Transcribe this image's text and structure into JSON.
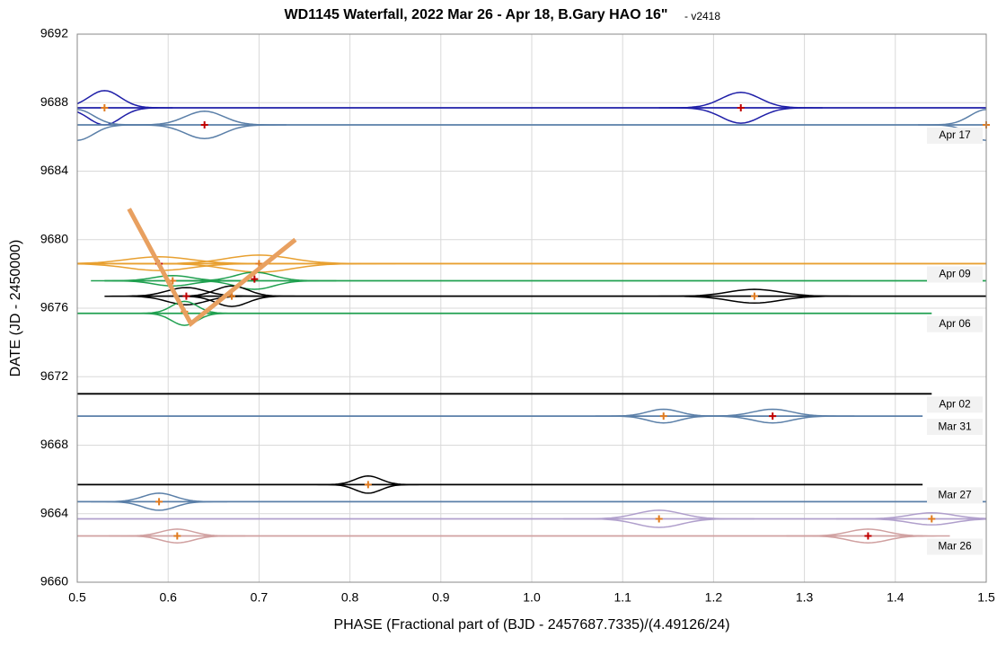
{
  "chart_data": {
    "type": "waterfall-phase",
    "title": "WD1145 Waterfall, 2022 Mar 26 - Apr 18, B.Gary HAO 16\"",
    "subtitle": "- v2418",
    "x_label": "PHASE (Fractional part of (BJD - 2457687.7335)/(4.49126/24)",
    "y_label": "DATE (JD - 2450000)",
    "xlim": [
      0.5,
      1.5
    ],
    "xticks": [
      0.5,
      0.6,
      0.7,
      0.8,
      0.9,
      {
        "value": 1,
        "label": "1.0"
      },
      1.1,
      1.2,
      1.3,
      1.4,
      1.5
    ],
    "ylim": [
      9660,
      9692
    ],
    "yticks": [
      9660,
      9664,
      9668,
      9672,
      9676,
      9680,
      9684,
      9688,
      9692
    ],
    "grid": true,
    "series": [
      {
        "color": "#1f1fa8",
        "y": 9687.7,
        "xrange": [
          0.5,
          1.5
        ],
        "dips": [
          {
            "phase": 0.53,
            "width": 0.025,
            "depth": 1.0
          },
          {
            "phase": 1.23,
            "width": 0.03,
            "depth": 0.9
          }
        ]
      },
      {
        "name": "Apr 17",
        "color": "#5a7fa8",
        "y": 9686.7,
        "xrange": [
          0.5,
          1.5
        ],
        "dips": [
          {
            "phase": 0.5,
            "width": 0.025,
            "depth": 0.9
          },
          {
            "phase": 0.64,
            "width": 0.03,
            "depth": 0.8
          },
          {
            "phase": 1.5,
            "width": 0.025,
            "depth": 0.9
          }
        ]
      },
      {
        "name": "Apr 09",
        "color": "#e8a030",
        "y": 9678.6,
        "xrange": [
          0.5,
          1.5
        ],
        "dips": [
          {
            "phase": 0.59,
            "width": 0.05,
            "depth": 0.4
          },
          {
            "phase": 0.7,
            "width": 0.05,
            "depth": 0.5
          }
        ]
      },
      {
        "color": "#20a050",
        "y": 9677.6,
        "xrange": [
          0.53,
          1.5
        ],
        "dips": [
          {
            "phase": 0.605,
            "width": 0.03,
            "depth": 0.3
          },
          {
            "phase": 0.695,
            "width": 0.03,
            "depth": 0.5
          }
        ]
      },
      {
        "color": "#000000",
        "y": 9676.7,
        "xrange": [
          0.56,
          1.5
        ],
        "dips": [
          {
            "phase": 0.62,
            "width": 0.03,
            "depth": 0.5
          },
          {
            "phase": 0.67,
            "width": 0.025,
            "depth": 0.6
          },
          {
            "phase": 1.245,
            "width": 0.04,
            "depth": 0.4
          }
        ]
      },
      {
        "name": "Apr 06",
        "color": "#20a050",
        "y": 9675.7,
        "xrange": [
          0.5,
          1.44
        ],
        "dips": [
          {
            "phase": 0.618,
            "width": 0.02,
            "depth": 0.7
          }
        ]
      },
      {
        "name": "Apr 02",
        "color": "#000000",
        "y": 9671,
        "xrange": [
          0.5,
          1.44
        ],
        "dips": []
      },
      {
        "name": "Mar 31",
        "color": "#5a7fa8",
        "y": 9669.7,
        "xrange": [
          0.5,
          1.43
        ],
        "dips": [
          {
            "phase": 1.145,
            "width": 0.025,
            "depth": 0.4
          },
          {
            "phase": 1.265,
            "width": 0.03,
            "depth": 0.4
          }
        ]
      },
      {
        "name": "Mar 27",
        "color": "#000000",
        "y": 9665.7,
        "xrange": [
          0.5,
          1.43
        ],
        "dips": [
          {
            "phase": 0.82,
            "width": 0.02,
            "depth": 0.5
          }
        ]
      },
      {
        "color": "#5a7fa8",
        "y": 9664.7,
        "xrange": [
          0.5,
          1.5
        ],
        "dips": [
          {
            "phase": 0.59,
            "width": 0.025,
            "depth": 0.5
          }
        ]
      },
      {
        "color": "#b09fcc",
        "y": 9663.7,
        "xrange": [
          0.5,
          1.5
        ],
        "dips": [
          {
            "phase": 1.14,
            "width": 0.035,
            "depth": 0.5
          },
          {
            "phase": 1.44,
            "width": 0.035,
            "depth": 0.35
          }
        ]
      },
      {
        "name": "Mar 26",
        "color": "#d0a0a0",
        "y": 9662.7,
        "xrange": [
          0.5,
          1.43
        ],
        "dips": [
          {
            "phase": 0.61,
            "width": 0.025,
            "depth": 0.4
          },
          {
            "phase": 1.37,
            "width": 0.03,
            "depth": 0.4
          }
        ]
      }
    ],
    "markers": [
      {
        "x": 0.53,
        "y": 9687.7,
        "color": "#e07b20"
      },
      {
        "x": 0.64,
        "y": 9686.7,
        "color": "#c00000"
      },
      {
        "x": 1.23,
        "y": 9687.7,
        "color": "#c00000"
      },
      {
        "x": 1.5,
        "y": 9686.7,
        "color": "#e07b20"
      },
      {
        "x": 0.59,
        "y": 9678.6,
        "color": "#c00000"
      },
      {
        "x": 0.7,
        "y": 9678.6,
        "color": "#e07b20"
      },
      {
        "x": 0.605,
        "y": 9677.6,
        "color": "#e07b20"
      },
      {
        "x": 0.695,
        "y": 9677.7,
        "color": "#c00000"
      },
      {
        "x": 0.62,
        "y": 9676.7,
        "color": "#c00000"
      },
      {
        "x": 0.67,
        "y": 9676.7,
        "color": "#e07b20"
      },
      {
        "x": 1.245,
        "y": 9676.7,
        "color": "#e07b20"
      },
      {
        "x": 0.618,
        "y": 9675.8,
        "color": "#e07b20"
      },
      {
        "x": 1.145,
        "y": 9669.7,
        "color": "#e07b20"
      },
      {
        "x": 1.265,
        "y": 9669.7,
        "color": "#c00000"
      },
      {
        "x": 0.82,
        "y": 9665.7,
        "color": "#e07b20"
      },
      {
        "x": 0.59,
        "y": 9664.7,
        "color": "#e07b20"
      },
      {
        "x": 1.14,
        "y": 9663.7,
        "color": "#e07b20"
      },
      {
        "x": 1.44,
        "y": 9663.7,
        "color": "#e07b20"
      },
      {
        "x": 0.61,
        "y": 9662.7,
        "color": "#e07b20"
      },
      {
        "x": 1.37,
        "y": 9662.7,
        "color": "#c00000"
      }
    ],
    "trend_line": {
      "color": "#e8a060",
      "x": [
        0.557,
        0.625,
        0.74
      ],
      "y": [
        9681.8,
        9675.1,
        9680
      ]
    }
  }
}
